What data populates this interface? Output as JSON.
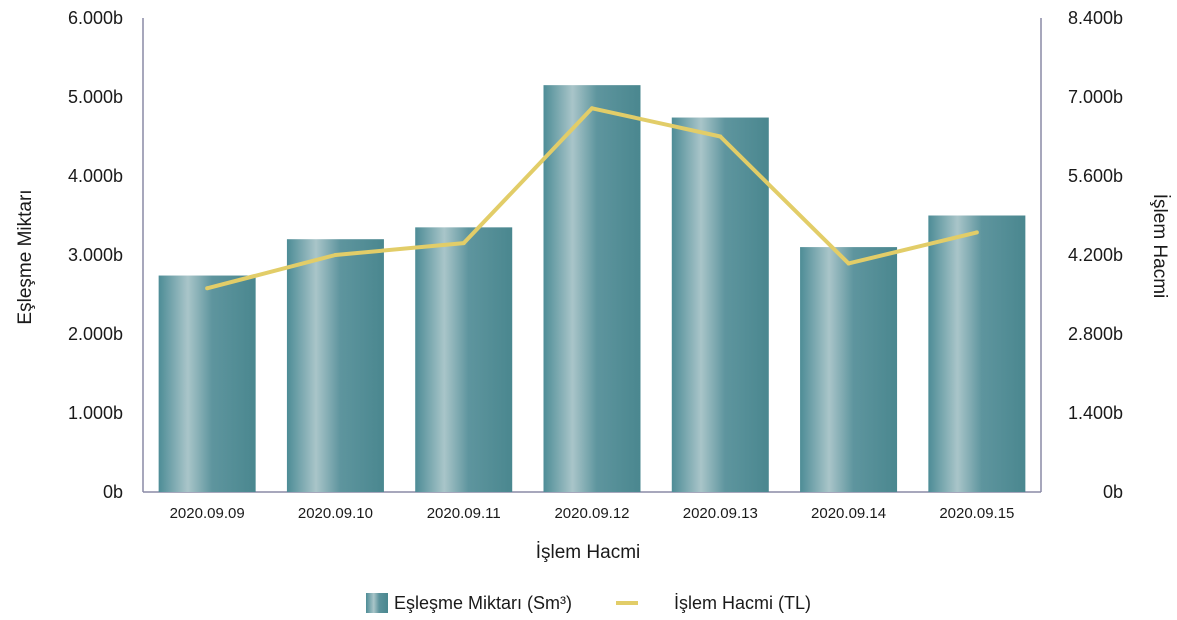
{
  "chart_data": {
    "type": "bar",
    "categories": [
      "2020.09.09",
      "2020.09.10",
      "2020.09.11",
      "2020.09.12",
      "2020.09.13",
      "2020.09.14",
      "2020.09.15"
    ],
    "series": [
      {
        "name": "Eşleşme Miktarı (Sm³)",
        "type": "bar",
        "axis": "left",
        "values": [
          2740,
          3200,
          3350,
          5150,
          4740,
          3100,
          3500
        ]
      },
      {
        "name": "İşlem Hacmi (TL)",
        "type": "line",
        "axis": "right",
        "values": [
          3610,
          4200,
          4410,
          6800,
          6300,
          4050,
          4600
        ]
      }
    ],
    "xlabel": "İşlem Hacmi",
    "ylabel": "Eşleşme Miktarı",
    "y2label": "İşlem Hacmi",
    "ylim": [
      0,
      6000
    ],
    "y2lim": [
      0,
      8400
    ],
    "yticks": [
      "0b",
      "1.000b",
      "2.000b",
      "3.000b",
      "4.000b",
      "5.000b",
      "6.000b"
    ],
    "y2ticks": [
      "0b",
      "1.400b",
      "2.800b",
      "4.200b",
      "5.600b",
      "7.000b",
      "8.400b"
    ],
    "grid": false,
    "legend_position": "bottom",
    "colors": {
      "bar": "#5a9199",
      "bar_highlight": "#a9c5c9",
      "line": "#e2cd68",
      "axis": "#8a8aa6"
    }
  },
  "legend": {
    "bar_label": "Eşleşme Miktarı (Sm³)",
    "line_label": "İşlem Hacmi (TL)"
  }
}
